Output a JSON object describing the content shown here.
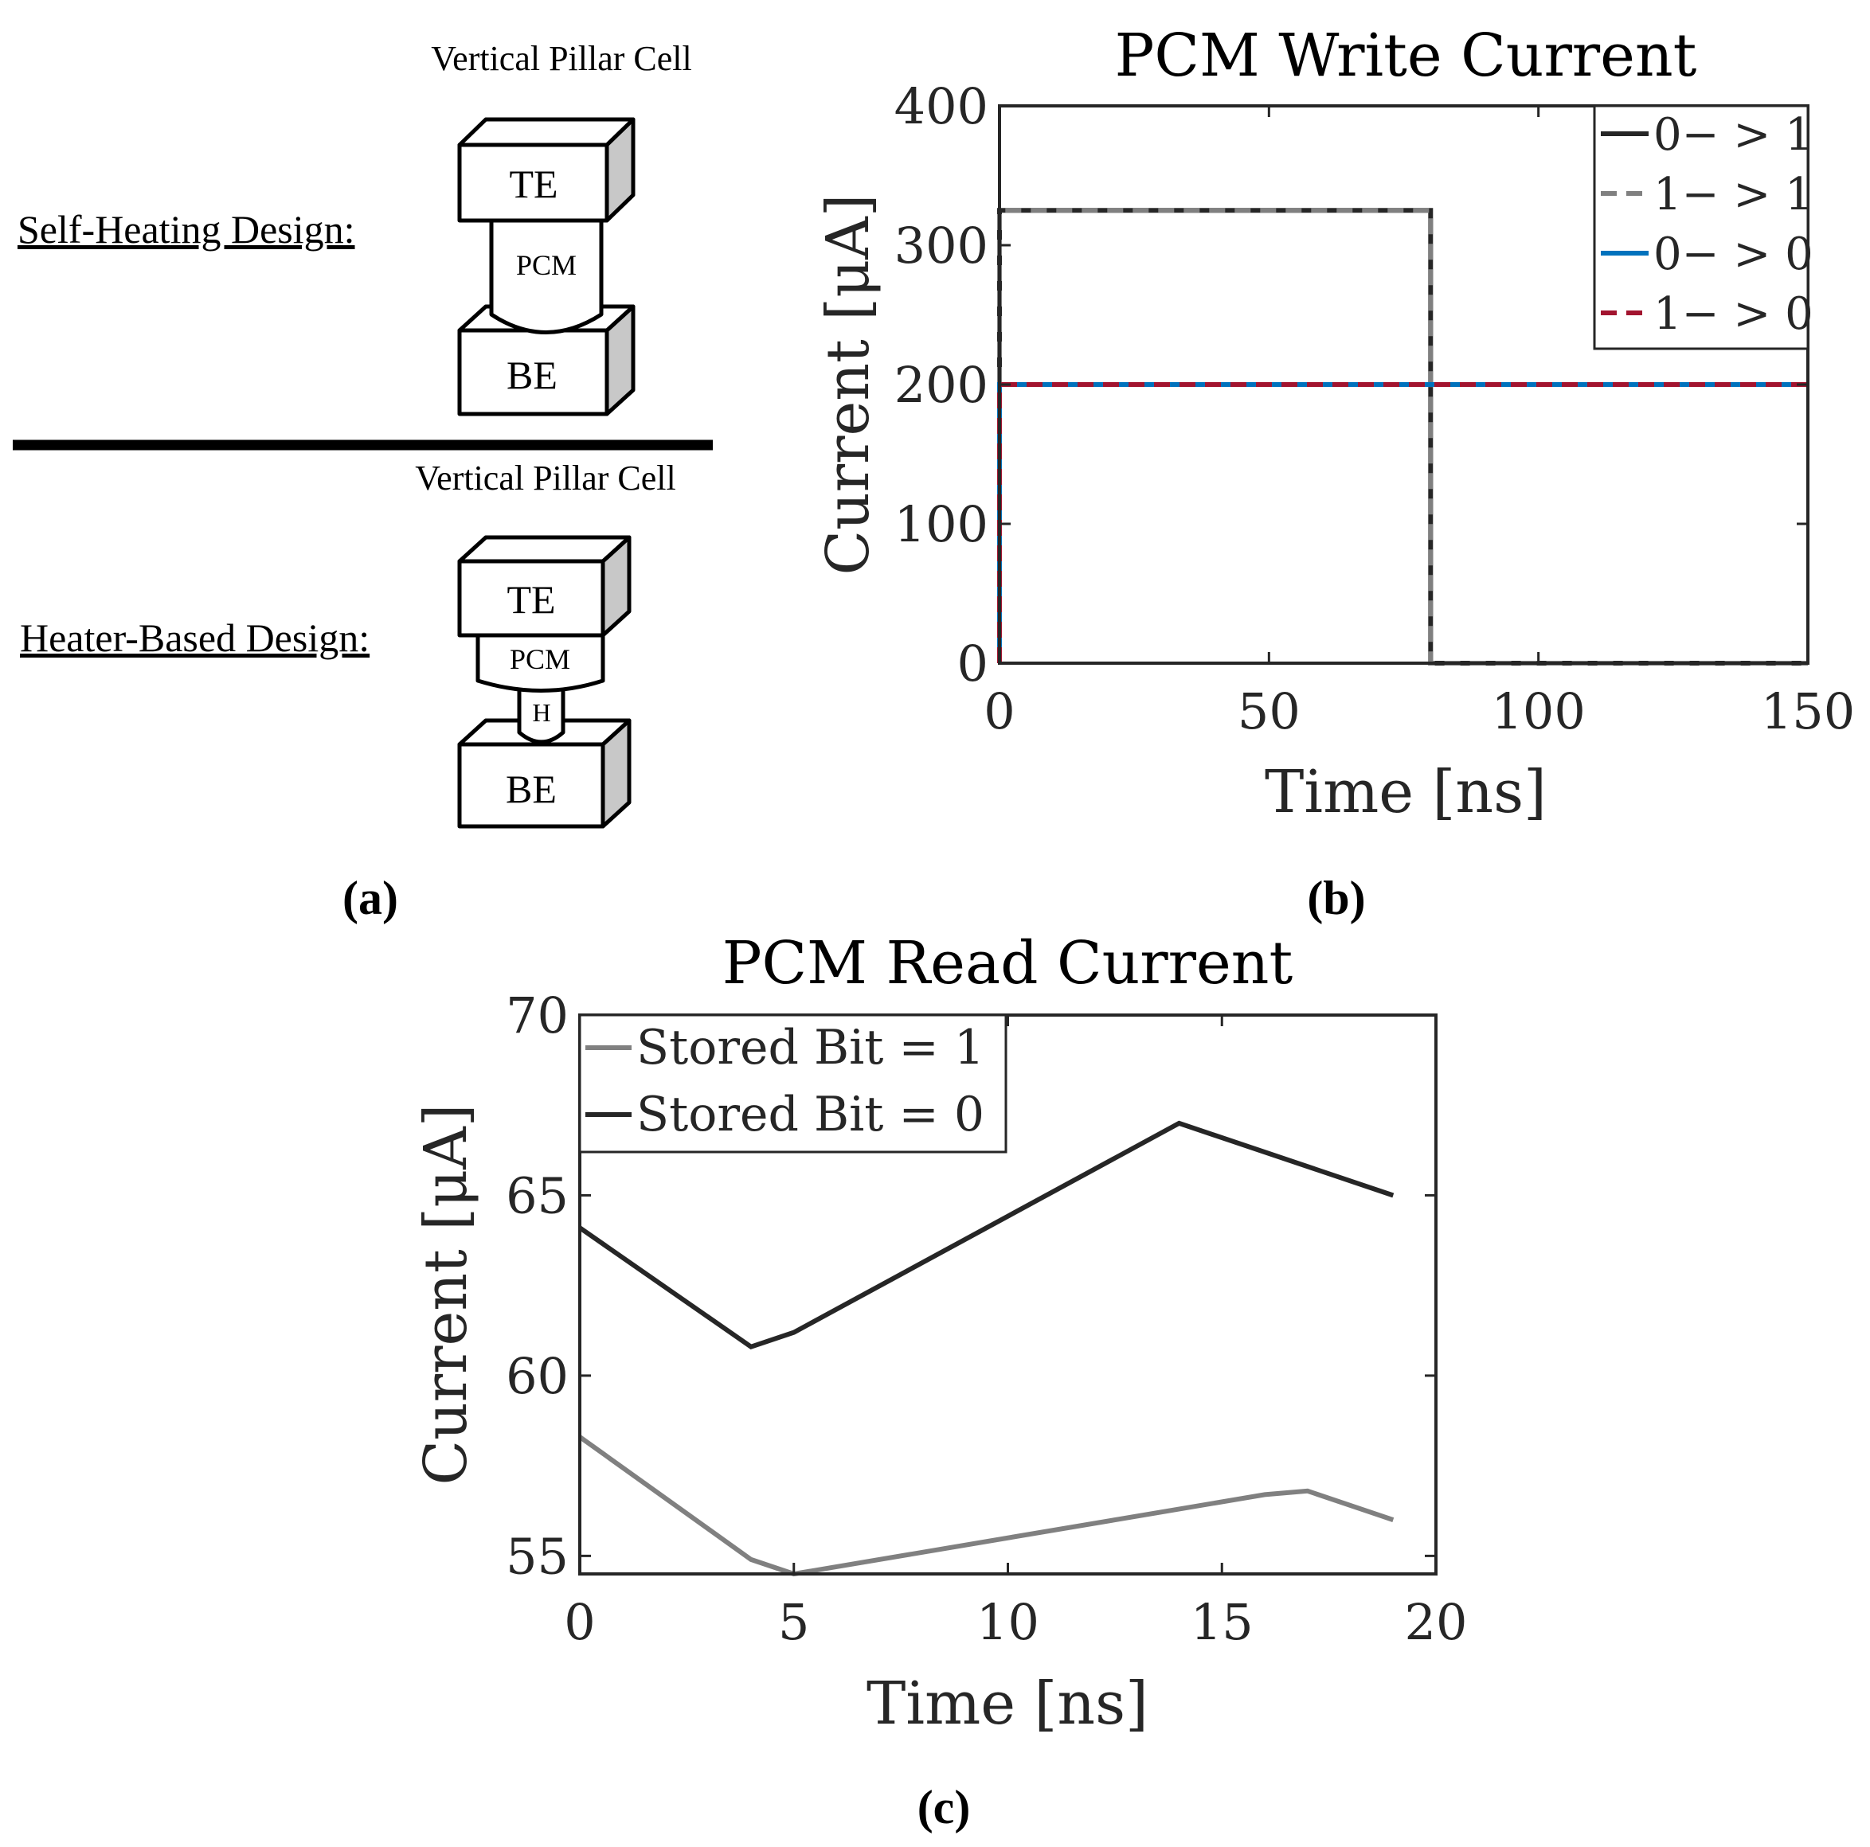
{
  "panel_labels": {
    "a": "(a)",
    "b": "(b)",
    "c": "(c)"
  },
  "diagram": {
    "top": {
      "title": "Vertical Pillar Cell",
      "design_label": "Self-Heating Design:",
      "te": "TE",
      "pcm": "PCM",
      "be": "BE"
    },
    "bottom": {
      "title": "Vertical Pillar Cell",
      "design_label": "Heater-Based Design:",
      "te": "TE",
      "pcm": "PCM",
      "heater": "H",
      "be": "BE"
    }
  },
  "colors": {
    "series_dark": "#262626",
    "series_gray": "#808080",
    "series_blue": "#0072BD",
    "series_red": "#A2142F",
    "axis": "#262626"
  },
  "chart_data": [
    {
      "type": "line",
      "title": "PCM Write Current",
      "xlabel": "Time [ns]",
      "ylabel": "Current [μA]",
      "xlim": [
        0,
        150
      ],
      "ylim": [
        0,
        400
      ],
      "xticks": [
        0,
        50,
        100,
        150
      ],
      "yticks": [
        0,
        100,
        200,
        300,
        400
      ],
      "xtick_labels": [
        "0",
        "50",
        "100",
        "150"
      ],
      "ytick_labels": [
        "0",
        "100",
        "200",
        "300",
        "400"
      ],
      "legend_position": "top-right",
      "series": [
        {
          "name": "0− > 1",
          "color": "#262626",
          "style": "solid",
          "x": [
            0,
            0,
            80,
            80,
            150
          ],
          "y": [
            0,
            325,
            325,
            0,
            0
          ]
        },
        {
          "name": "1− > 1",
          "color": "#808080",
          "style": "dashed",
          "x": [
            0,
            0,
            80,
            80,
            150
          ],
          "y": [
            0,
            325,
            325,
            0,
            0
          ]
        },
        {
          "name": "0− > 0",
          "color": "#0072BD",
          "style": "solid",
          "x": [
            0,
            0,
            150
          ],
          "y": [
            0,
            200,
            200
          ]
        },
        {
          "name": "1− > 0",
          "color": "#A2142F",
          "style": "dashed",
          "x": [
            0,
            0,
            150
          ],
          "y": [
            0,
            200,
            200
          ]
        }
      ]
    },
    {
      "type": "line",
      "title": "PCM Read Current",
      "xlabel": "Time [ns]",
      "ylabel": "Current [μA]",
      "xlim": [
        0,
        20
      ],
      "ylim": [
        54.5,
        70
      ],
      "xticks": [
        0,
        5,
        10,
        15,
        20
      ],
      "yticks": [
        55,
        60,
        65,
        70
      ],
      "xtick_labels": [
        "0",
        "5",
        "10",
        "15",
        "20"
      ],
      "ytick_labels": [
        "55",
        "60",
        "65",
        "70"
      ],
      "legend_position": "top-left",
      "series": [
        {
          "name": "Stored Bit = 1",
          "color": "#808080",
          "style": "solid",
          "x": [
            0,
            4,
            5,
            16,
            17,
            19
          ],
          "y": [
            58.3,
            54.9,
            54.5,
            56.7,
            56.8,
            56.0
          ]
        },
        {
          "name": "Stored Bit = 0",
          "color": "#262626",
          "style": "solid",
          "x": [
            0,
            4,
            5,
            14,
            19
          ],
          "y": [
            64.1,
            60.8,
            61.2,
            67.0,
            65.0
          ]
        }
      ]
    }
  ]
}
